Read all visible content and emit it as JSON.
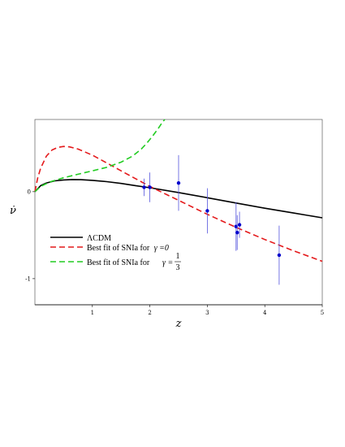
{
  "chart_data": {
    "type": "line",
    "xlabel": "z",
    "ylabel": "ν̇",
    "xlim": [
      0,
      5
    ],
    "ylim": [
      -1.3,
      0.83
    ],
    "x_ticks": [
      1,
      2,
      3,
      4,
      5
    ],
    "y_ticks": [
      0,
      -1
    ],
    "grid": false,
    "legend_position": "lower-left",
    "series": [
      {
        "name": "ΛCDM",
        "style": "solid",
        "color": "#000000",
        "x": [
          0,
          0.1,
          0.2,
          0.35,
          0.5,
          0.65,
          0.8,
          1.0,
          1.25,
          1.5,
          1.75,
          2.0,
          2.5,
          3.0,
          3.5,
          4.0,
          4.5,
          5.0
        ],
        "y": [
          0,
          0.07,
          0.1,
          0.125,
          0.135,
          0.14,
          0.138,
          0.13,
          0.115,
          0.095,
          0.07,
          0.045,
          -0.01,
          -0.07,
          -0.13,
          -0.19,
          -0.245,
          -0.3
        ]
      },
      {
        "name": "Best fit of SNIa for",
        "legend_math": "γ =0",
        "style": "dashed",
        "color": "#e41a1c",
        "x": [
          0,
          0.05,
          0.1,
          0.2,
          0.3,
          0.4,
          0.5,
          0.6,
          0.75,
          1.0,
          1.25,
          1.5,
          1.75,
          2.0,
          2.5,
          3.0,
          3.5,
          4.0,
          4.5,
          5.0
        ],
        "y": [
          0,
          0.16,
          0.27,
          0.41,
          0.48,
          0.51,
          0.52,
          0.515,
          0.49,
          0.42,
          0.33,
          0.24,
          0.15,
          0.06,
          -0.1,
          -0.26,
          -0.41,
          -0.55,
          -0.68,
          -0.8
        ]
      },
      {
        "name": "Best fit of SNIa for",
        "legend_math": "γ =1/3",
        "style": "dashed",
        "color": "#22cc22",
        "x": [
          0,
          0.1,
          0.25,
          0.5,
          0.75,
          1.0,
          1.25,
          1.5,
          1.7,
          1.85,
          1.95,
          2.05,
          2.15,
          2.22,
          2.26
        ],
        "y": [
          0,
          0.06,
          0.11,
          0.16,
          0.2,
          0.24,
          0.28,
          0.34,
          0.41,
          0.49,
          0.56,
          0.64,
          0.73,
          0.8,
          0.83
        ]
      }
    ],
    "data_points": {
      "color": "#0000cc",
      "x": [
        1.9,
        2.0,
        2.5,
        3.0,
        3.5,
        3.52,
        3.56,
        4.25
      ],
      "y": [
        0.05,
        0.05,
        0.1,
        -0.22,
        -0.4,
        -0.47,
        -0.38,
        -0.73
      ],
      "err": [
        0.1,
        0.17,
        0.32,
        0.26,
        0.28,
        0.2,
        0.15,
        0.34
      ]
    },
    "legend_fraction": {
      "numerator": "1",
      "denominator": "3"
    }
  }
}
